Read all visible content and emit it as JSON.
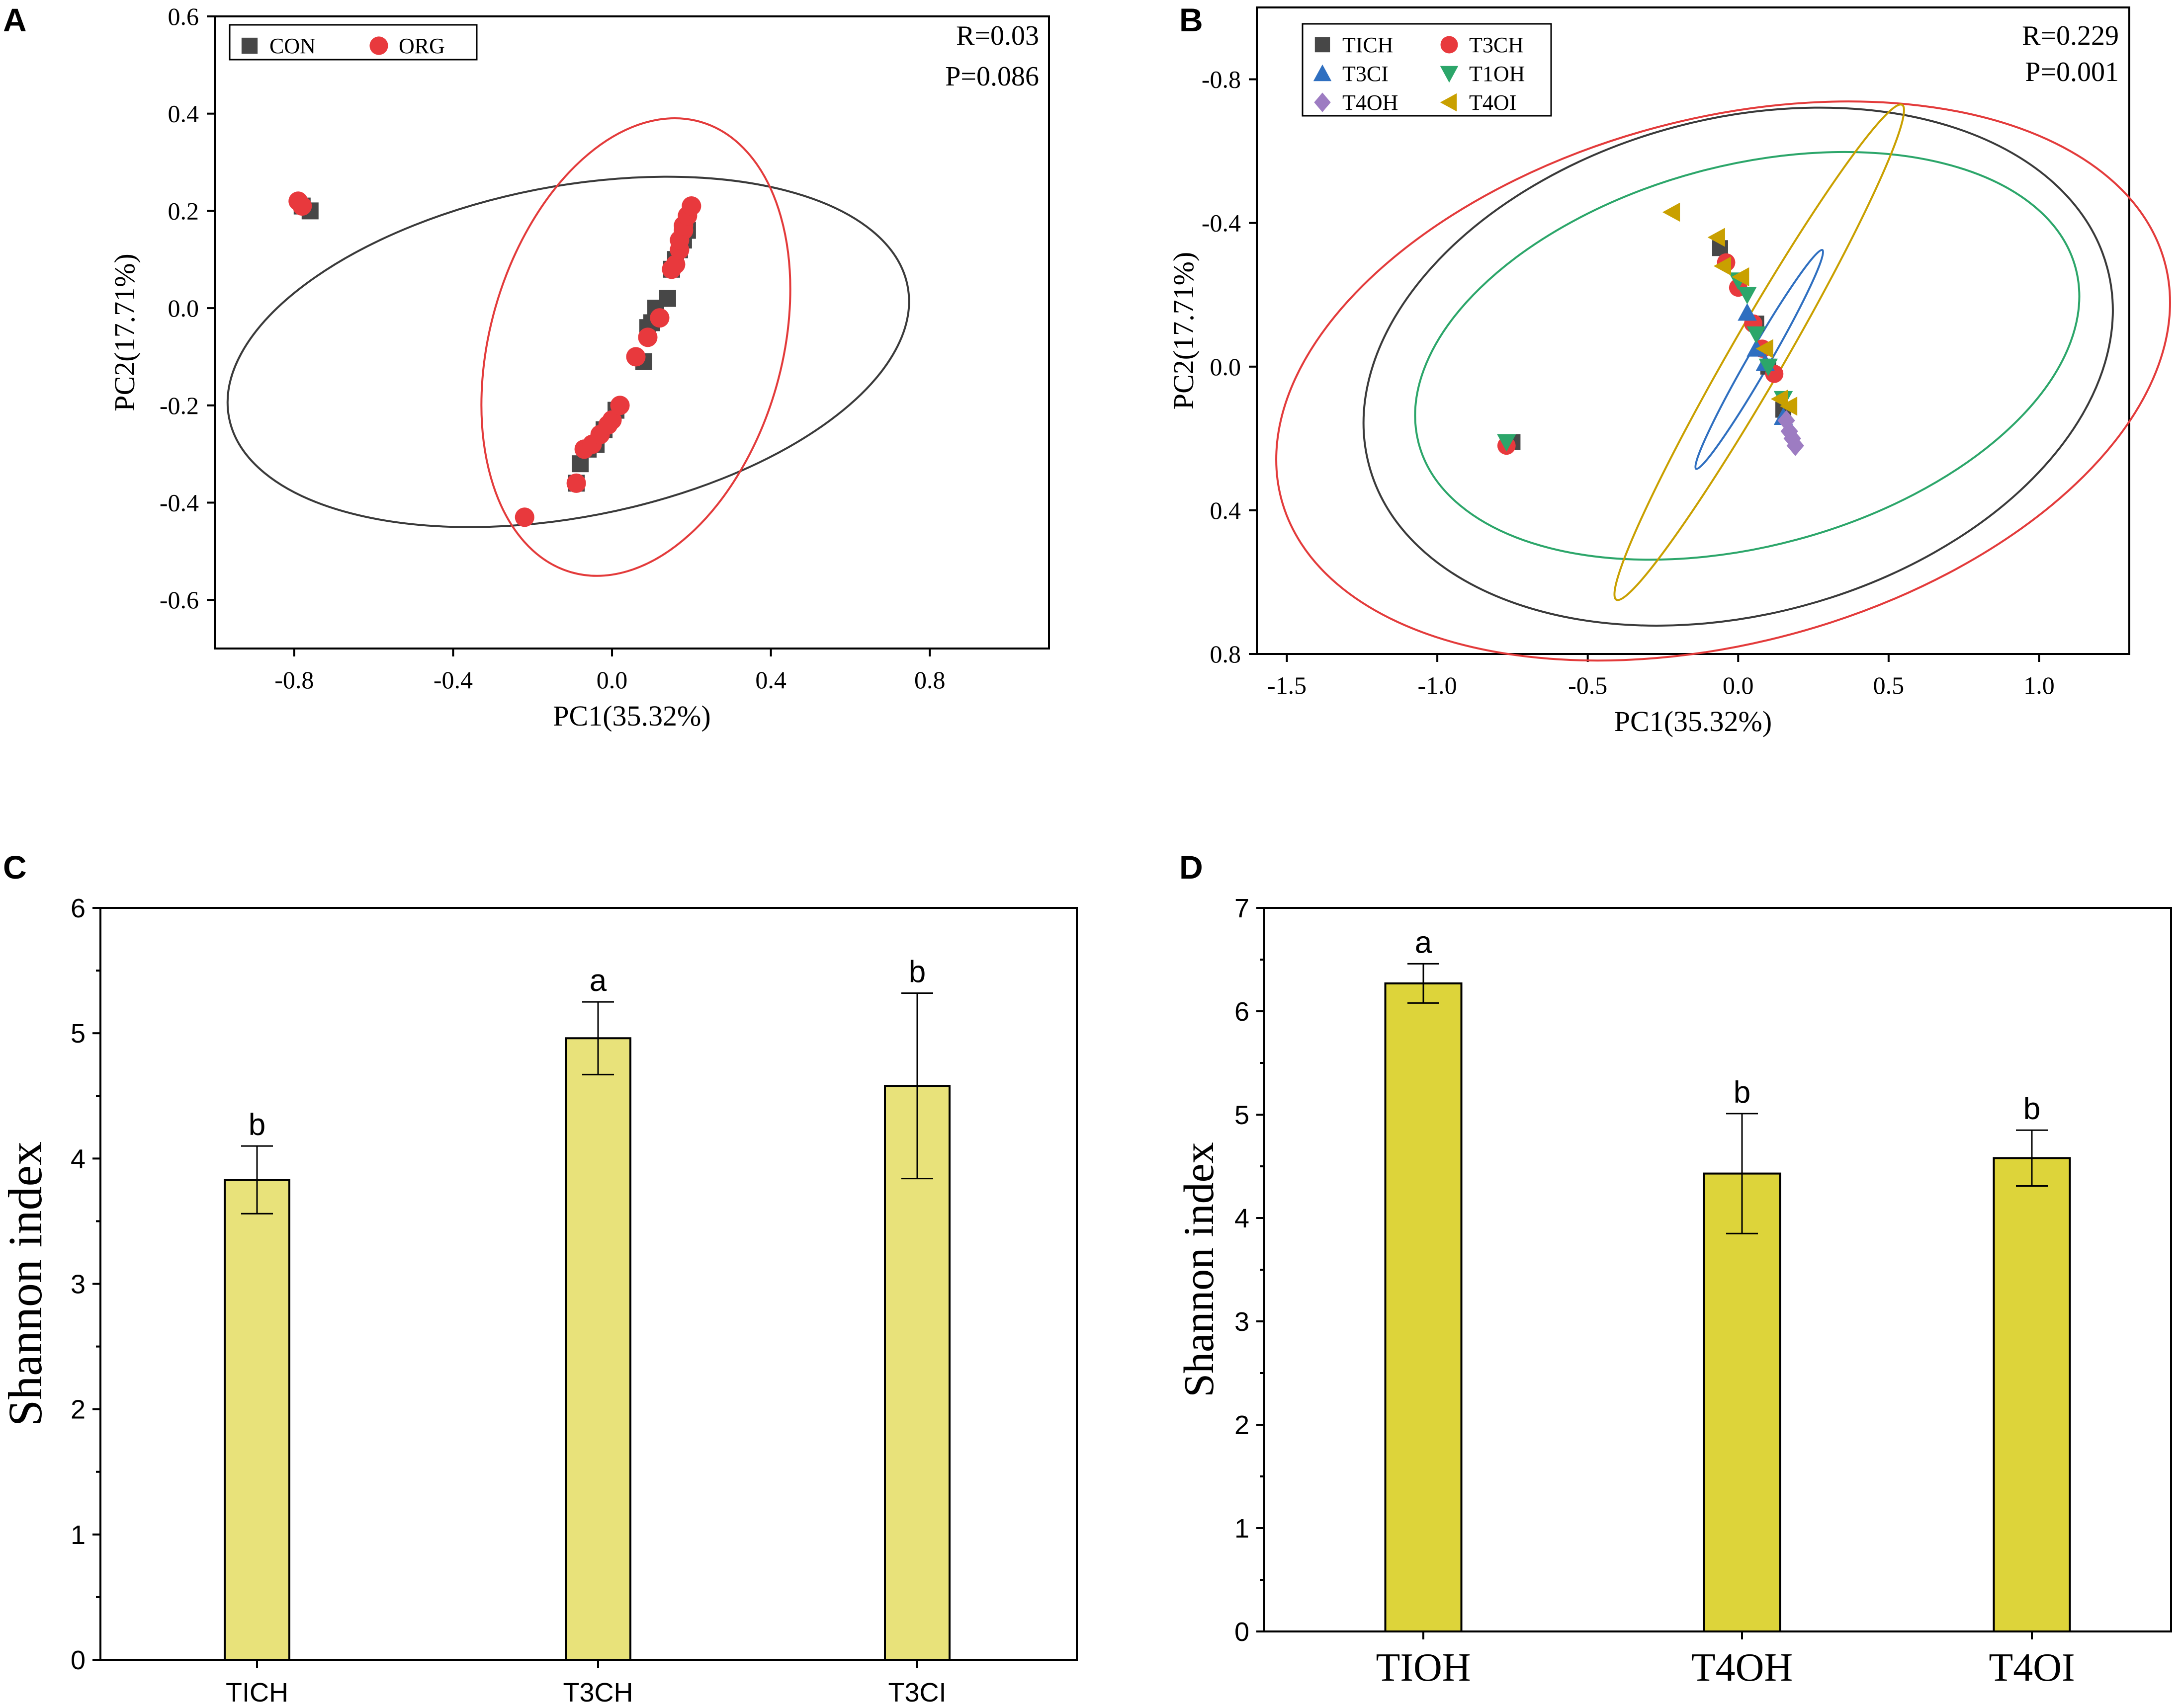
{
  "panels": {
    "A": {
      "label": "A",
      "stat_r": "R=0.03",
      "stat_p": "P=0.086"
    },
    "B": {
      "label": "B",
      "stat_r": "R=0.229",
      "stat_p": "P=0.001"
    },
    "C": {
      "label": "C"
    },
    "D": {
      "label": "D"
    }
  },
  "colors": {
    "con": "#474747",
    "org": "#e8393d",
    "tich": "#474747",
    "t3ch": "#e8393d",
    "t3ci": "#2f6fc0",
    "t10h": "#2ca66a",
    "t40h": "#9d7cc2",
    "t40i": "#c9a000",
    "bar_c": "#e8e27a",
    "bar_d": "#ddd43a",
    "ellipse_black": "#3a3a3a",
    "ellipse_red": "#e33b3b",
    "ellipse_green": "#2ca66a",
    "ellipse_gold": "#c9a000",
    "ellipse_blue": "#2f6fc0"
  },
  "chart_data": [
    {
      "panel": "A",
      "type": "scatter",
      "title": "",
      "xlabel": "PC1(35.32%)",
      "ylabel": "PC2(17.71%)",
      "xlim": [
        -1.0,
        1.1
      ],
      "ylim": [
        -0.7,
        0.6
      ],
      "xticks": [
        -0.8,
        -0.4,
        0.0,
        0.4,
        0.8
      ],
      "xtick_labels": [
        "-0.8",
        "-0.4",
        "0.0",
        "0.4",
        "0.8"
      ],
      "yticks": [
        -0.6,
        -0.4,
        -0.2,
        0.0,
        0.2,
        0.4,
        0.6
      ],
      "ytick_labels": [
        "-0.6",
        "-0.4",
        "-0.2",
        "0.0",
        "0.2",
        "0.4",
        "0.6"
      ],
      "y_inverted": false,
      "legend_position": "top-left",
      "legend": [
        "CON",
        "ORG"
      ],
      "series": [
        {
          "name": "CON",
          "marker": "square",
          "color": "#474747",
          "points": [
            [
              -0.78,
              0.21
            ],
            [
              -0.76,
              0.2
            ],
            [
              -0.09,
              -0.36
            ],
            [
              -0.08,
              -0.32
            ],
            [
              -0.06,
              -0.29
            ],
            [
              -0.04,
              -0.28
            ],
            [
              -0.02,
              -0.25
            ],
            [
              0.01,
              -0.21
            ],
            [
              0.08,
              -0.11
            ],
            [
              0.09,
              -0.04
            ],
            [
              0.1,
              -0.03
            ],
            [
              0.11,
              0.0
            ],
            [
              0.14,
              0.02
            ],
            [
              0.15,
              0.08
            ],
            [
              0.16,
              0.1
            ],
            [
              0.17,
              0.12
            ],
            [
              0.18,
              0.14
            ],
            [
              0.19,
              0.16
            ]
          ]
        },
        {
          "name": "ORG",
          "marker": "circle",
          "color": "#e8393d",
          "points": [
            [
              -0.79,
              0.22
            ],
            [
              -0.78,
              0.21
            ],
            [
              -0.22,
              -0.43
            ],
            [
              -0.09,
              -0.36
            ],
            [
              -0.07,
              -0.29
            ],
            [
              -0.05,
              -0.28
            ],
            [
              -0.03,
              -0.26
            ],
            [
              -0.01,
              -0.24
            ],
            [
              0.0,
              -0.23
            ],
            [
              0.02,
              -0.2
            ],
            [
              0.06,
              -0.1
            ],
            [
              0.09,
              -0.06
            ],
            [
              0.12,
              -0.02
            ],
            [
              0.15,
              0.08
            ],
            [
              0.16,
              0.09
            ],
            [
              0.17,
              0.12
            ],
            [
              0.17,
              0.14
            ],
            [
              0.18,
              0.16
            ],
            [
              0.18,
              0.17
            ],
            [
              0.19,
              0.19
            ],
            [
              0.2,
              0.21
            ]
          ]
        }
      ],
      "ellipses": [
        {
          "color": "#3a3a3a",
          "cx": -0.11,
          "cy": -0.09,
          "rx": 0.87,
          "ry": 0.34,
          "angle_deg": -11
        },
        {
          "color": "#e33b3b",
          "cx": 0.06,
          "cy": -0.08,
          "rx": 0.59,
          "ry": 0.3,
          "angle_deg": -74
        }
      ]
    },
    {
      "panel": "B",
      "type": "scatter",
      "title": "",
      "xlabel": "PC1(35.32%)",
      "ylabel": "PC2(17.71%)",
      "xlim": [
        -1.6,
        1.3
      ],
      "ylim": [
        -1.0,
        0.8
      ],
      "xticks": [
        -1.5,
        -1.0,
        -0.5,
        0.0,
        0.5,
        1.0
      ],
      "xtick_labels": [
        "-1.5",
        "-1.0",
        "-0.5",
        "0.0",
        "0.5",
        "1.0"
      ],
      "yticks": [
        -0.8,
        -0.4,
        0.0,
        0.4,
        0.8
      ],
      "ytick_labels": [
        "-0.8",
        "-0.4",
        "0.0",
        "0.4",
        "0.8"
      ],
      "y_inverted": true,
      "legend_position": "top-left",
      "legend": [
        "TICH",
        "T3CH",
        "T3CI",
        "T1OH",
        "T4OH",
        "T4OI"
      ],
      "series": [
        {
          "name": "TICH",
          "marker": "square",
          "color": "#474747",
          "points": [
            [
              -0.75,
              0.21
            ],
            [
              -0.06,
              -0.33
            ],
            [
              0.06,
              -0.12
            ],
            [
              0.1,
              0.0
            ],
            [
              0.15,
              0.12
            ]
          ]
        },
        {
          "name": "T3CH",
          "marker": "circle",
          "color": "#e8393d",
          "points": [
            [
              -0.77,
              0.22
            ],
            [
              -0.04,
              -0.29
            ],
            [
              0.0,
              -0.22
            ],
            [
              0.05,
              -0.12
            ],
            [
              0.08,
              -0.05
            ],
            [
              0.12,
              0.02
            ]
          ]
        },
        {
          "name": "T3CI",
          "marker": "triangle-up",
          "color": "#2f6fc0",
          "points": [
            [
              0.03,
              -0.15
            ],
            [
              0.06,
              -0.05
            ],
            [
              0.09,
              -0.01
            ],
            [
              0.15,
              0.14
            ]
          ]
        },
        {
          "name": "T1OH",
          "marker": "triangle-down",
          "color": "#2ca66a",
          "points": [
            [
              -0.77,
              0.21
            ],
            [
              0.0,
              -0.24
            ],
            [
              0.03,
              -0.2
            ],
            [
              0.06,
              -0.09
            ],
            [
              0.1,
              0.0
            ],
            [
              0.15,
              0.09
            ]
          ]
        },
        {
          "name": "T4OH",
          "marker": "diamond",
          "color": "#9d7cc2",
          "points": [
            [
              0.16,
              0.15
            ],
            [
              0.17,
              0.18
            ],
            [
              0.18,
              0.2
            ],
            [
              0.19,
              0.22
            ]
          ]
        },
        {
          "name": "T4OI",
          "marker": "triangle-left",
          "color": "#c9a000",
          "points": [
            [
              -0.22,
              -0.43
            ],
            [
              -0.07,
              -0.36
            ],
            [
              -0.05,
              -0.28
            ],
            [
              0.01,
              -0.25
            ],
            [
              0.09,
              -0.05
            ],
            [
              0.14,
              0.09
            ],
            [
              0.17,
              0.11
            ]
          ]
        }
      ],
      "ellipses": [
        {
          "color": "#3a3a3a",
          "cx": 0.0,
          "cy": 0.0,
          "rx": 1.27,
          "ry": 0.69,
          "angle_deg": -15
        },
        {
          "color": "#e33b3b",
          "cx": -0.05,
          "cy": 0.04,
          "rx": 1.52,
          "ry": 0.73,
          "angle_deg": -15
        },
        {
          "color": "#2ca66a",
          "cx": 0.03,
          "cy": -0.03,
          "rx": 1.13,
          "ry": 0.53,
          "angle_deg": -15
        },
        {
          "color": "#c9a000",
          "cx": 0.07,
          "cy": -0.04,
          "rx": 0.95,
          "ry": 0.075,
          "angle_deg": -60
        },
        {
          "color": "#2f6fc0",
          "cx": 0.07,
          "cy": -0.02,
          "rx": 0.42,
          "ry": 0.03,
          "angle_deg": -60
        }
      ]
    },
    {
      "panel": "C",
      "type": "bar",
      "title": "",
      "xlabel": "",
      "ylabel": "Shannon index",
      "ylim": [
        0,
        6
      ],
      "yticks": [
        0,
        1,
        2,
        3,
        4,
        5,
        6
      ],
      "ytick_labels": [
        "0",
        "1",
        "2",
        "3",
        "4",
        "5",
        "6"
      ],
      "categories": [
        "TICH",
        "T3CH",
        "T3CI"
      ],
      "values": [
        3.83,
        4.96,
        4.58
      ],
      "errors": [
        0.27,
        0.29,
        0.74
      ],
      "significance": [
        "b",
        "a",
        "b"
      ],
      "color": "#e8e27a"
    },
    {
      "panel": "D",
      "type": "bar",
      "title": "",
      "xlabel": "",
      "ylabel": "Shannon index",
      "ylim": [
        0,
        7
      ],
      "yticks": [
        0,
        1,
        2,
        3,
        4,
        5,
        6,
        7
      ],
      "ytick_labels": [
        "0",
        "1",
        "2",
        "3",
        "4",
        "5",
        "6",
        "7"
      ],
      "categories": [
        "TIOH",
        "T4OH",
        "T4OI"
      ],
      "values": [
        6.27,
        4.43,
        4.58
      ],
      "errors": [
        0.19,
        0.58,
        0.27
      ],
      "significance": [
        "a",
        "b",
        "b"
      ],
      "color": "#ddd43a"
    }
  ]
}
